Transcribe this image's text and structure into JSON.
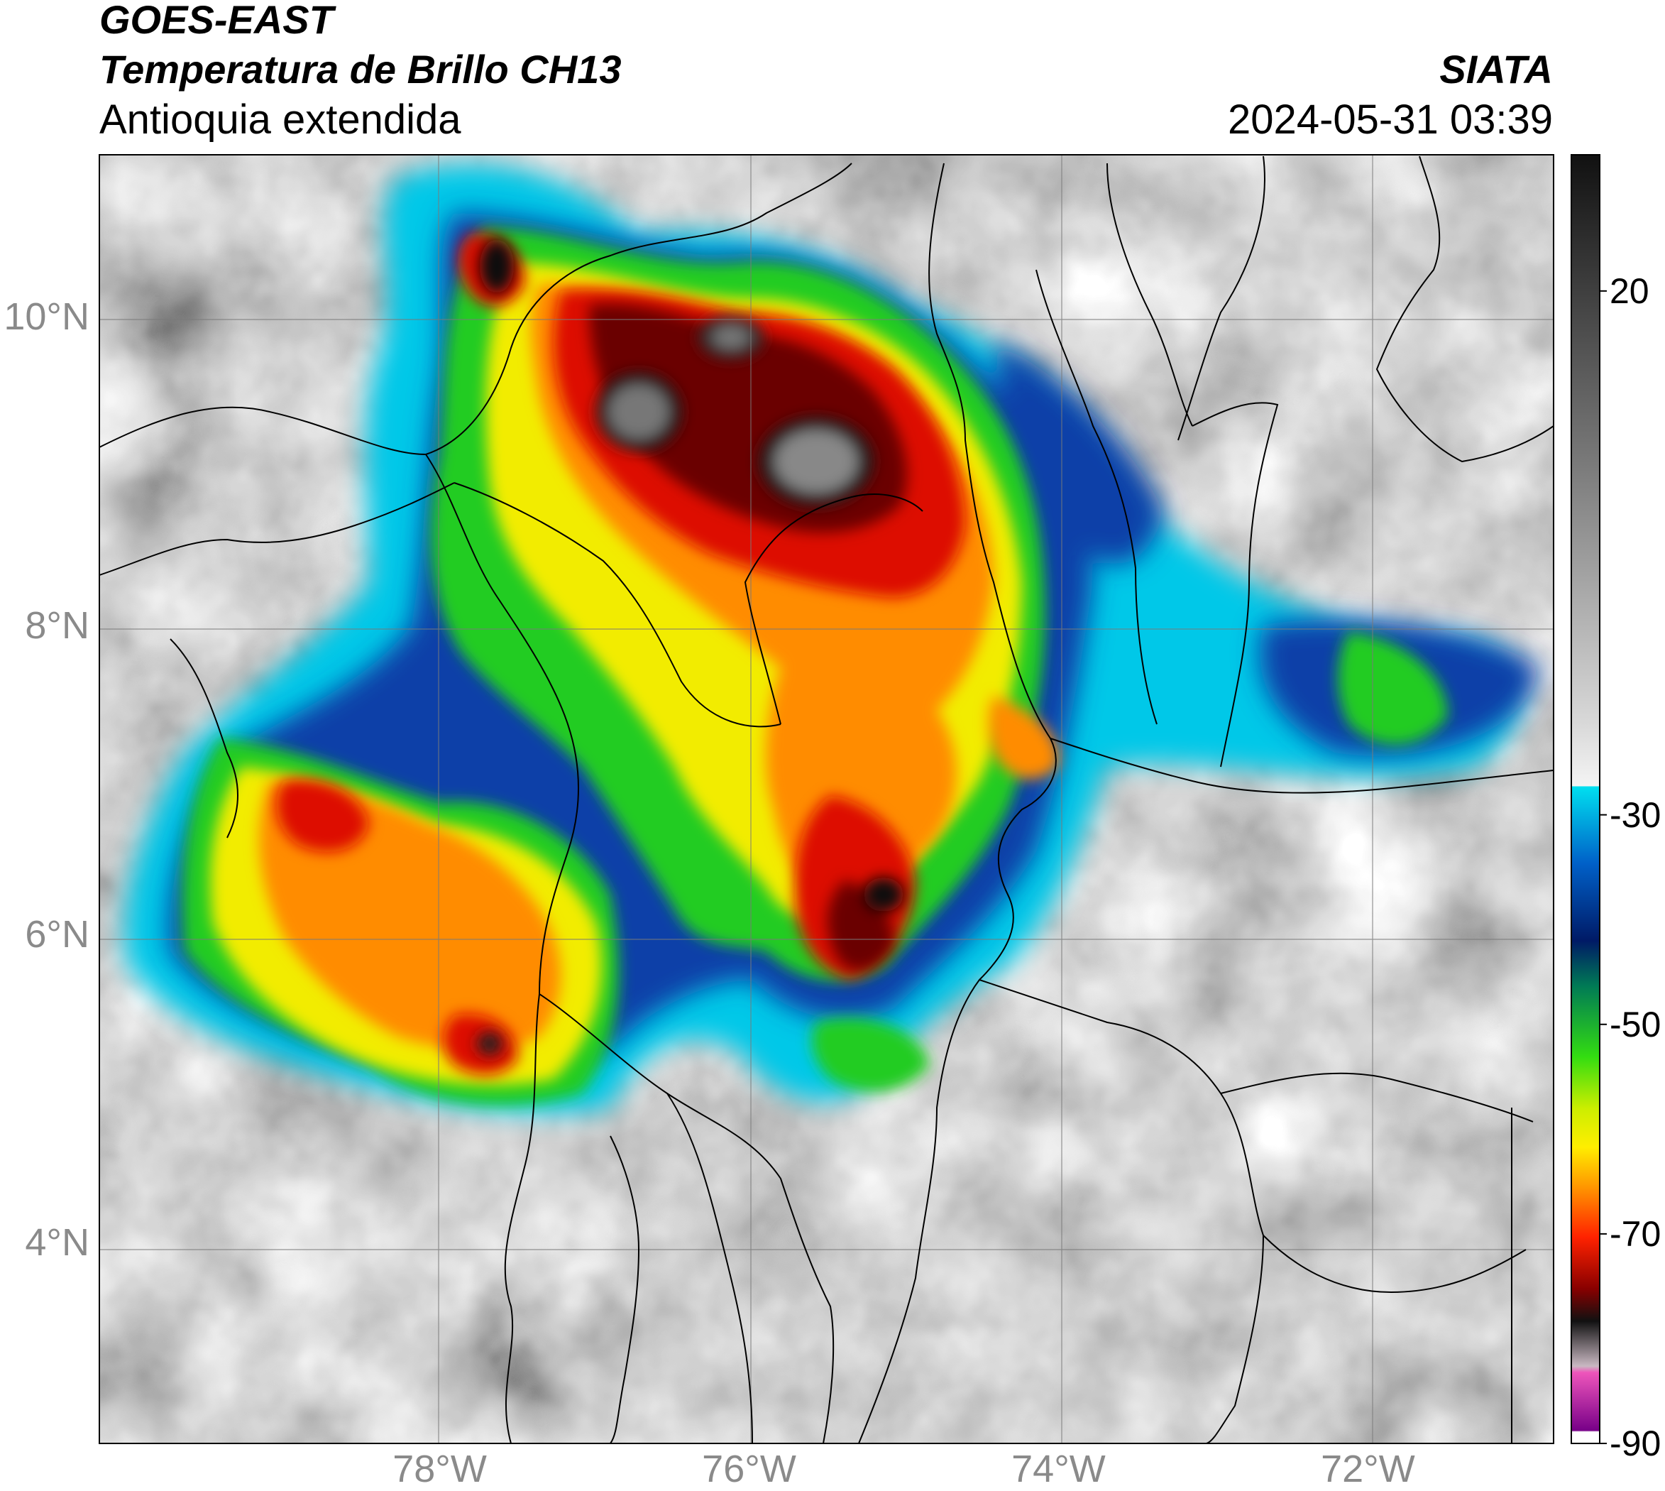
{
  "header": {
    "satellite": "GOES-EAST",
    "product": "Temperatura de Brillo CH13",
    "region": "Antioquia extendida",
    "brand": "SIATA",
    "timestamp": "2024-05-31 03:39"
  },
  "map": {
    "lat_ticks": [
      {
        "value": 10,
        "label": "10°N"
      },
      {
        "value": 8,
        "label": "8°N"
      },
      {
        "value": 6,
        "label": "6°N"
      },
      {
        "value": 4,
        "label": "4°N"
      }
    ],
    "lon_ticks": [
      {
        "value": -78,
        "label": "78°W"
      },
      {
        "value": -76,
        "label": "76°W"
      },
      {
        "value": -74,
        "label": "74°W"
      },
      {
        "value": -72,
        "label": "72°W"
      }
    ],
    "extent": {
      "lon_min": -80.2,
      "lon_max": -70.8,
      "lat_min": 2.7,
      "lat_max": 11.05
    }
  },
  "colorbar": {
    "range": [
      -90,
      33
    ],
    "labels": [
      {
        "value": 20,
        "label": "20"
      },
      {
        "value": -30,
        "label": "-30"
      },
      {
        "value": -50,
        "label": "-50"
      },
      {
        "value": -70,
        "label": "-70"
      },
      {
        "value": -90,
        "label": "-90"
      }
    ],
    "colors": {
      "warm_gray_top": "#111111",
      "gray_bottom": "#f2f2f2",
      "cyan": "#00ccee",
      "blue": "#0044bb",
      "dark_blue": "#001a66",
      "dark_green": "#00664d",
      "green": "#22cc22",
      "yellow": "#f5f500",
      "orange": "#ff8800",
      "red": "#dd0000",
      "dark_red": "#660000",
      "black": "#111111",
      "light_pink": "#e8d6e0",
      "magenta": "#dd33aa",
      "purple": "#770088"
    }
  }
}
